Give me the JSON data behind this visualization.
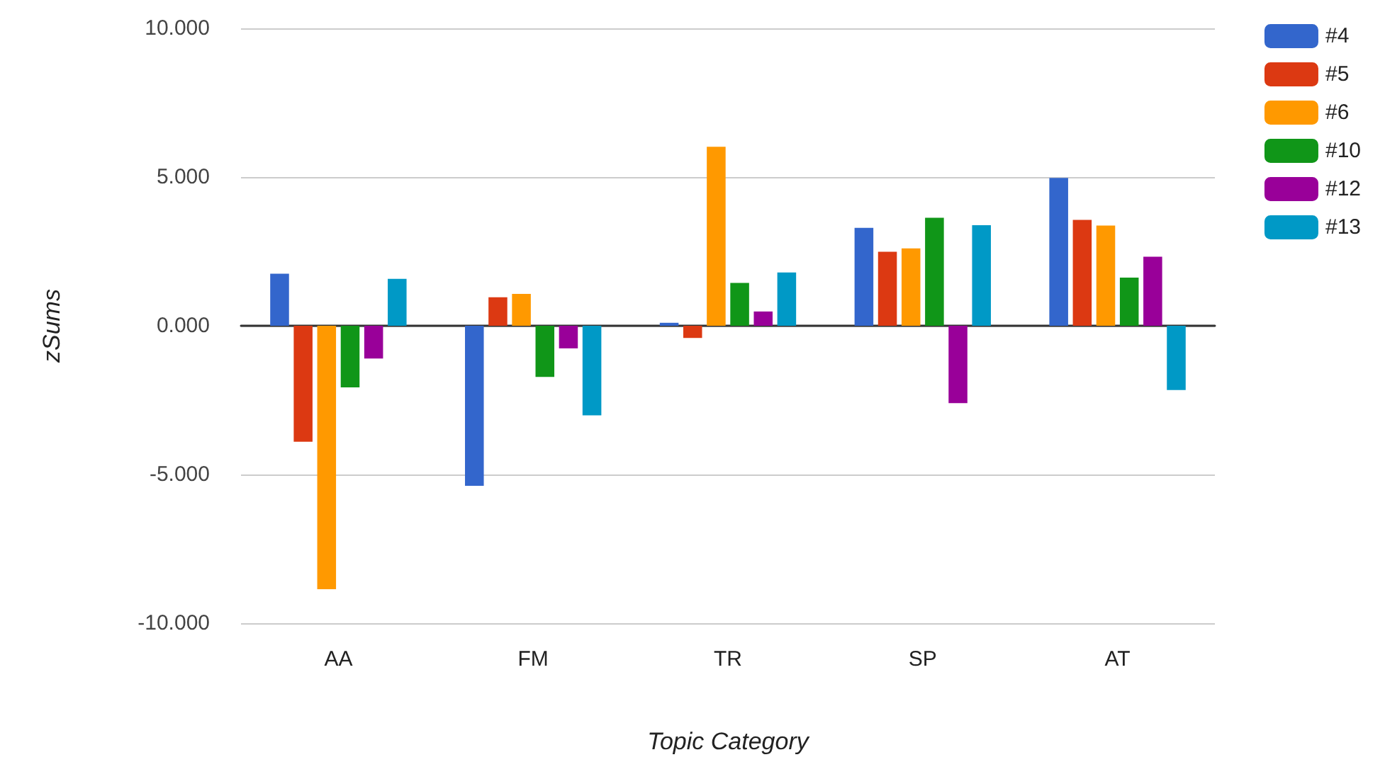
{
  "chart_data": {
    "type": "bar",
    "xlabel": "Topic Category",
    "ylabel": "zSums",
    "categories": [
      "AA",
      "FM",
      "TR",
      "SP",
      "AT"
    ],
    "series": [
      {
        "name": "#4",
        "color": "#3366cc",
        "values": [
          1.75,
          -5.38,
          0.1,
          3.29,
          4.97
        ]
      },
      {
        "name": "#5",
        "color": "#dc3912",
        "values": [
          -3.9,
          0.96,
          -0.41,
          2.49,
          3.56
        ]
      },
      {
        "name": "#6",
        "color": "#ff9900",
        "values": [
          -8.86,
          1.07,
          6.02,
          2.6,
          3.37
        ]
      },
      {
        "name": "#10",
        "color": "#109618",
        "values": [
          -2.07,
          -1.72,
          1.44,
          3.63,
          1.62
        ]
      },
      {
        "name": "#12",
        "color": "#990099",
        "values": [
          -1.1,
          -0.76,
          0.48,
          -2.6,
          2.32
        ]
      },
      {
        "name": "#13",
        "color": "#0099c6",
        "values": [
          1.58,
          -3.01,
          1.79,
          3.38,
          -2.16
        ]
      }
    ],
    "ylim": [
      -10,
      10
    ],
    "yticks": [
      {
        "value": -10,
        "label": "-10.000"
      },
      {
        "value": -5,
        "label": "-5.000"
      },
      {
        "value": 0,
        "label": "0.000"
      },
      {
        "value": 5,
        "label": "5.000"
      },
      {
        "value": 10,
        "label": "10.000"
      }
    ],
    "grid": "y",
    "legend": "top right"
  }
}
